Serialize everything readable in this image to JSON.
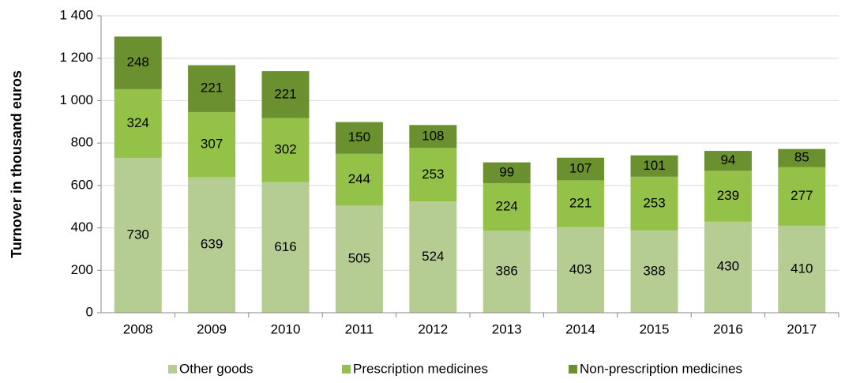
{
  "chart_data": {
    "type": "stacked_bar",
    "y_label": "Turnover in thousand euros",
    "categories": [
      "2008",
      "2009",
      "2010",
      "2011",
      "2012",
      "2013",
      "2014",
      "2015",
      "2016",
      "2017"
    ],
    "series": [
      {
        "name": "Other goods",
        "color": "#b5cc92",
        "values": [
          730,
          639,
          616,
          505,
          524,
          386,
          403,
          388,
          430,
          410
        ]
      },
      {
        "name": "Prescription medicines",
        "color": "#94c148",
        "values": [
          324,
          307,
          302,
          244,
          253,
          224,
          221,
          253,
          239,
          277
        ]
      },
      {
        "name": "Non-prescription medicines",
        "color": "#6b902f",
        "values": [
          248,
          221,
          221,
          150,
          108,
          99,
          107,
          101,
          94,
          85
        ]
      }
    ],
    "ylim": [
      0,
      1400
    ],
    "yticks": [
      0,
      200,
      400,
      600,
      800,
      {
        "value": 1000,
        "label": "1 000"
      },
      {
        "value": 1200,
        "label": "1 200"
      },
      {
        "value": 1400,
        "label": "1 400"
      }
    ],
    "grid": true,
    "legend": "bottom"
  }
}
